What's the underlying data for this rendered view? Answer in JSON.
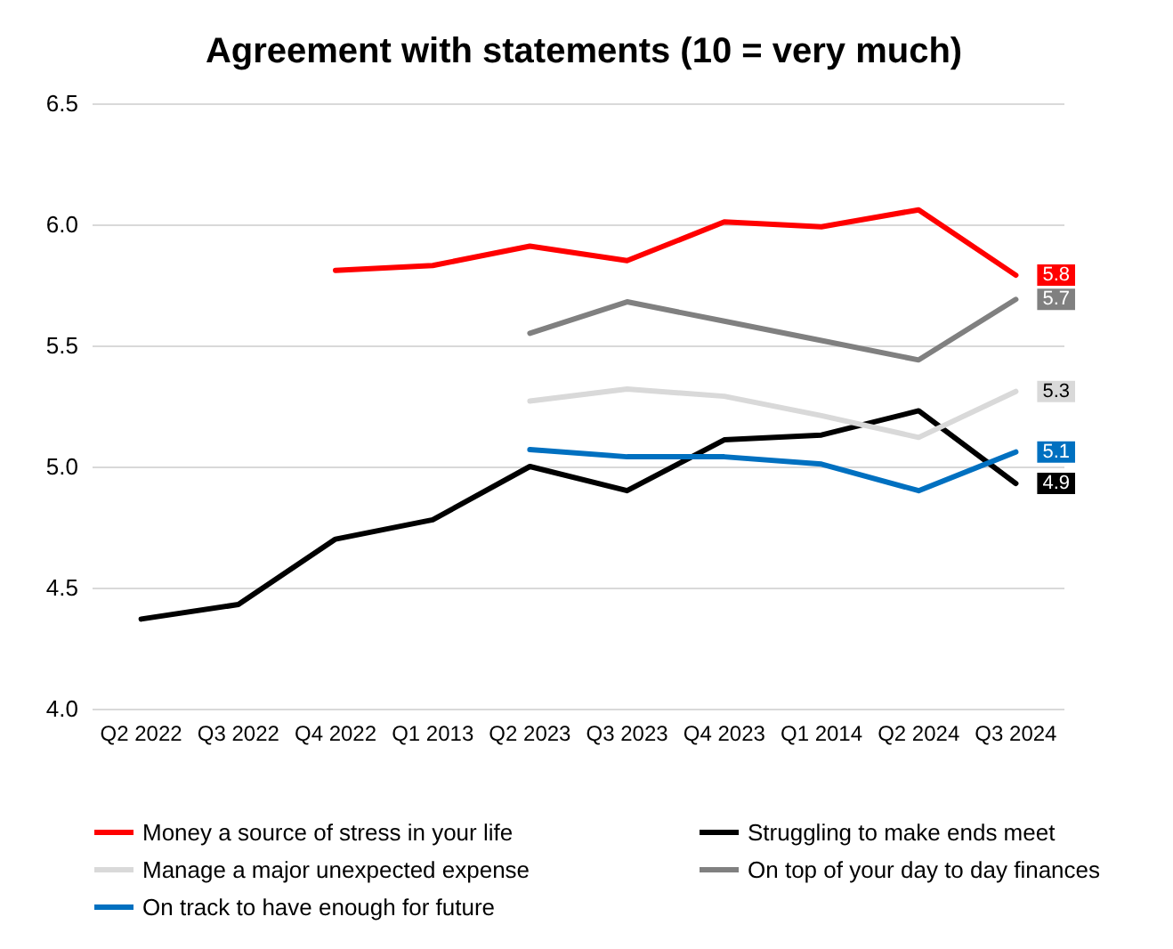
{
  "chart_data": {
    "type": "line",
    "title": "Agreement with statements (10 = very much)",
    "categories": [
      "Q2 2022",
      "Q3 2022",
      "Q4 2022",
      "Q1 2013",
      "Q2 2023",
      "Q3 2023",
      "Q4 2023",
      "Q1 2014",
      "Q2 2024",
      "Q3 2024"
    ],
    "series": [
      {
        "name": "Money a source of stress in your life",
        "color": "#ff0000",
        "values": [
          null,
          null,
          5.81,
          5.83,
          5.91,
          5.85,
          6.01,
          5.99,
          6.06,
          5.79
        ],
        "value_labels": [
          null,
          null,
          null,
          null,
          null,
          null,
          null,
          null,
          null,
          "5.8"
        ]
      },
      {
        "name": "Struggling to make ends meet",
        "color": "#000000",
        "values": [
          4.37,
          4.43,
          4.7,
          4.78,
          5.0,
          4.9,
          5.11,
          5.13,
          5.23,
          4.93
        ],
        "value_labels": [
          null,
          null,
          null,
          null,
          null,
          null,
          null,
          null,
          null,
          "4.9"
        ]
      },
      {
        "name": "Manage a major unexpected expense",
        "color": "#d9d9d9",
        "values": [
          null,
          null,
          null,
          null,
          5.27,
          5.32,
          5.29,
          5.21,
          5.12,
          5.31
        ],
        "value_labels": [
          null,
          null,
          null,
          null,
          null,
          null,
          null,
          null,
          null,
          "5.3"
        ]
      },
      {
        "name": "On top of your day to day finances",
        "color": "#808080",
        "values": [
          null,
          null,
          null,
          null,
          5.55,
          5.68,
          5.6,
          5.52,
          5.44,
          5.69
        ],
        "value_labels": [
          null,
          null,
          null,
          null,
          null,
          null,
          null,
          null,
          null,
          "5.7"
        ]
      },
      {
        "name": "On track to have enough for future",
        "color": "#0070c0",
        "values": [
          null,
          null,
          null,
          null,
          5.07,
          5.04,
          5.04,
          5.01,
          4.9,
          5.06
        ],
        "value_labels": [
          null,
          null,
          null,
          null,
          null,
          null,
          null,
          null,
          null,
          "5.1"
        ]
      }
    ],
    "ylim": [
      4,
      6.5
    ],
    "yticks": [
      {
        "value": 4,
        "label": "4.0"
      },
      {
        "value": 4.5,
        "label": "4.5"
      },
      {
        "value": 5,
        "label": "5.0"
      },
      {
        "value": 5.5,
        "label": "5.5"
      },
      {
        "value": 6,
        "label": "6.0"
      },
      {
        "value": 6.5,
        "label": "6.5"
      }
    ],
    "grid": "y",
    "legend": "bottom",
    "marker": "none",
    "line_style": "solid"
  }
}
